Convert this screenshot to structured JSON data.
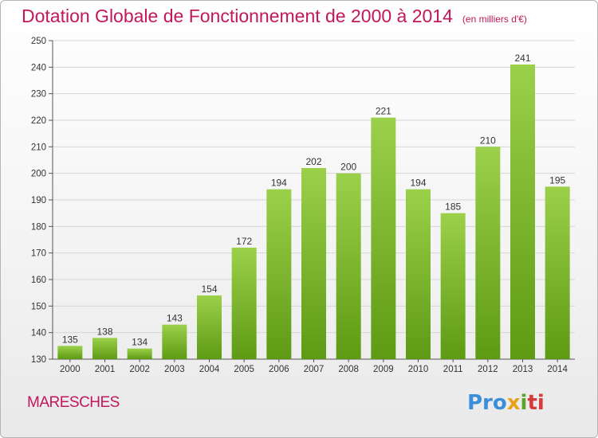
{
  "header": {
    "title": "Dotation Globale de Fonctionnement de 2000 à 2014",
    "subtitle": "(en milliers d'€)"
  },
  "footer": {
    "commune": "MARESCHES",
    "logo": "Proxiti"
  },
  "colors": {
    "title": "#c2185b",
    "bar_top": "#9bd04a",
    "bar_bottom": "#5e9a14"
  },
  "chart_data": {
    "type": "bar",
    "title": "Dotation Globale de Fonctionnement de 2000 à 2014",
    "subtitle": "(en milliers d'€)",
    "categories": [
      "2000",
      "2001",
      "2002",
      "2003",
      "2004",
      "2005",
      "2006",
      "2007",
      "2008",
      "2009",
      "2010",
      "2011",
      "2012",
      "2013",
      "2014"
    ],
    "values": [
      135,
      138,
      134,
      143,
      154,
      172,
      194,
      202,
      200,
      221,
      194,
      185,
      210,
      241,
      195
    ],
    "ylim": [
      130,
      250
    ],
    "yticks": [
      130,
      140,
      150,
      160,
      170,
      180,
      190,
      200,
      210,
      220,
      230,
      240,
      250
    ],
    "grid": true,
    "data_labels": true
  }
}
